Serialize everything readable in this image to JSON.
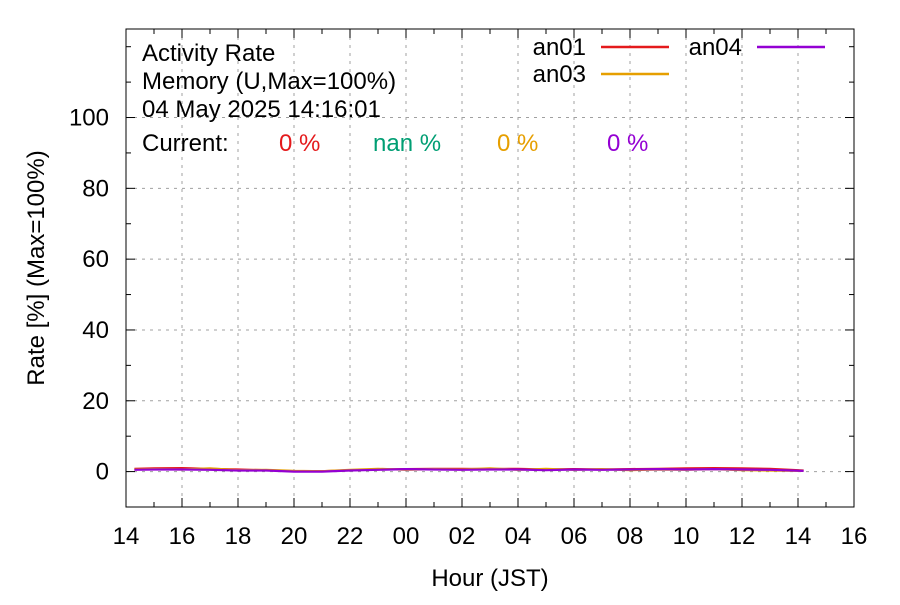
{
  "chart_data": {
    "type": "line",
    "title_lines": [
      "Activity Rate",
      "Memory (U,Max=100%)",
      "04 May 2025 14:16:01"
    ],
    "xlabel": "Hour (JST)",
    "ylabel": "Rate [%]  (Max=100%)",
    "xlim": [
      14,
      40
    ],
    "ylim": [
      -10,
      125
    ],
    "x_ticks": [
      {
        "v": 14,
        "label": "14"
      },
      {
        "v": 16,
        "label": "16"
      },
      {
        "v": 18,
        "label": "18"
      },
      {
        "v": 20,
        "label": "20"
      },
      {
        "v": 22,
        "label": "22"
      },
      {
        "v": 24,
        "label": "00"
      },
      {
        "v": 26,
        "label": "02"
      },
      {
        "v": 28,
        "label": "04"
      },
      {
        "v": 30,
        "label": "06"
      },
      {
        "v": 32,
        "label": "08"
      },
      {
        "v": 34,
        "label": "10"
      },
      {
        "v": 36,
        "label": "12"
      },
      {
        "v": 38,
        "label": "14"
      },
      {
        "v": 40,
        "label": "16"
      }
    ],
    "y_ticks": [
      0,
      20,
      40,
      60,
      80,
      100
    ],
    "grid": true,
    "current_label": "Current:",
    "current_values": [
      {
        "text": "0 %",
        "color": "#e41a1c"
      },
      {
        "text": "nan %",
        "color": "#009e73"
      },
      {
        "text": "0 %",
        "color": "#e69f00"
      },
      {
        "text": "0 %",
        "color": "#9400d3"
      }
    ],
    "legend_position": "top-right",
    "series": [
      {
        "name": "an01",
        "color": "#e41a1c",
        "x": [
          14.3,
          15.0,
          16.0,
          17.0,
          18.0,
          19.0,
          20.0,
          21.0,
          22.0,
          23.0,
          24.0,
          25.0,
          26.0,
          27.0,
          28.0,
          29.0,
          30.0,
          31.0,
          32.0,
          33.0,
          34.0,
          35.0,
          36.0,
          37.0,
          38.2
        ],
        "y": [
          0.8,
          0.9,
          1.0,
          0.8,
          0.6,
          0.4,
          0.1,
          0.1,
          0.4,
          0.6,
          0.7,
          0.8,
          0.8,
          0.7,
          0.8,
          0.6,
          0.7,
          0.6,
          0.7,
          0.8,
          0.9,
          1.0,
          0.9,
          0.8,
          0.3
        ]
      },
      {
        "name": "an03",
        "color": "#e69f00",
        "x": [
          14.3,
          15.0,
          16.0,
          17.0,
          18.0,
          19.0,
          20.0,
          21.0,
          22.0,
          23.0,
          24.0,
          25.0,
          26.0,
          27.0,
          28.0,
          29.0,
          30.0,
          31.0,
          32.0,
          33.0,
          34.0,
          35.0,
          36.0,
          37.0,
          38.2
        ],
        "y": [
          0.6,
          0.7,
          0.6,
          0.9,
          0.4,
          0.5,
          0.2,
          0.1,
          0.5,
          0.8,
          0.5,
          0.7,
          0.6,
          0.9,
          0.5,
          0.8,
          0.5,
          0.7,
          0.4,
          0.6,
          0.5,
          0.7,
          0.4,
          0.3,
          0.2
        ]
      },
      {
        "name": "an04",
        "color": "#9400d3",
        "x": [
          14.3,
          15.0,
          16.0,
          17.0,
          18.0,
          19.0,
          20.0,
          21.0,
          22.0,
          23.0,
          24.0,
          25.0,
          26.0,
          27.0,
          28.0,
          29.0,
          30.0,
          31.0,
          32.0,
          33.0,
          34.0,
          35.0,
          36.0,
          37.0,
          38.2
        ],
        "y": [
          0.5,
          0.6,
          0.6,
          0.5,
          0.3,
          0.3,
          0.0,
          0.0,
          0.3,
          0.5,
          0.7,
          0.6,
          0.5,
          0.6,
          0.6,
          0.4,
          0.6,
          0.5,
          0.6,
          0.7,
          0.6,
          0.7,
          0.6,
          0.5,
          0.2
        ]
      }
    ]
  }
}
